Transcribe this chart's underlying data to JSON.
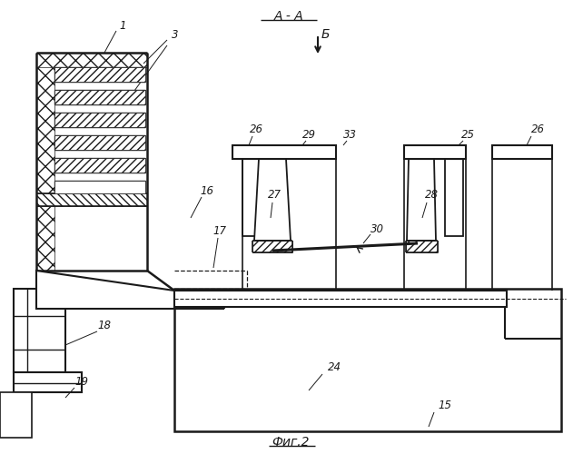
{
  "bg_color": "#ffffff",
  "line_color": "#1a1a1a",
  "title": "Фиг.2",
  "label_AA": "A - A",
  "label_B": "Б",
  "fig_width": 6.31,
  "fig_height": 5.0
}
